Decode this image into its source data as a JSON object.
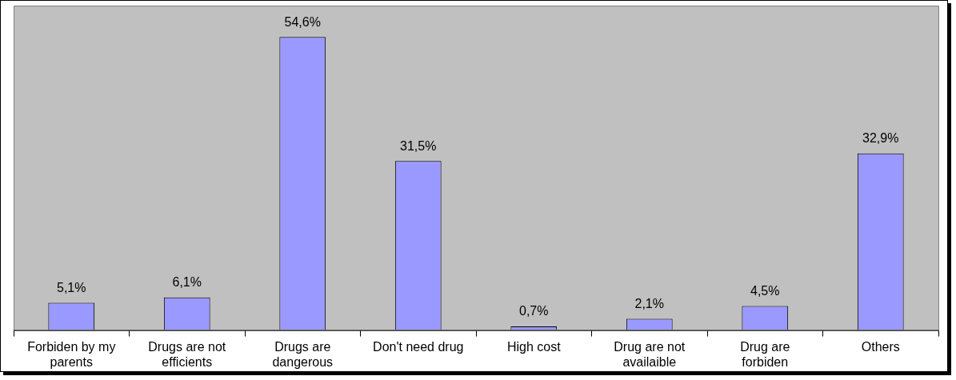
{
  "chart_data": {
    "type": "bar",
    "categories": [
      "Forbiden by my parents",
      "Drugs are not efficients",
      "Drugs are dangerous",
      "Don't need drug",
      "High cost",
      "Drug are not availaible",
      "Drug are forbiden",
      "Others"
    ],
    "values": [
      5.1,
      6.1,
      54.6,
      31.5,
      0.7,
      2.1,
      4.5,
      32.9
    ],
    "value_labels": [
      "5,1%",
      "6,1%",
      "54,6%",
      "31,5%",
      "0,7%",
      "2,1%",
      "4,5%",
      "32,9%"
    ],
    "color": "#9999ff",
    "legend": false,
    "grid": false
  }
}
